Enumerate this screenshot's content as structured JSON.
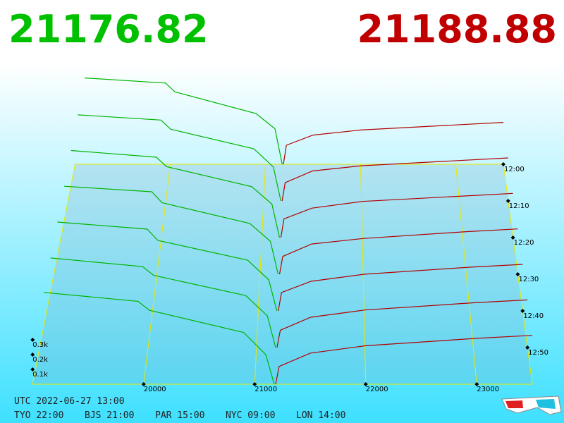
{
  "chart_data": {
    "type": "depth3d",
    "bid_price": 21176.82,
    "ask_price": 21188.88,
    "xlim": [
      19000,
      23500
    ],
    "xticks": [
      20000,
      21000,
      22000,
      23000
    ],
    "time_lim": [
      0,
      60
    ],
    "time_ticks": [
      {
        "value": 0,
        "label": "12:00"
      },
      {
        "value": 10,
        "label": "12:10"
      },
      {
        "value": 20,
        "label": "12:20"
      },
      {
        "value": 30,
        "label": "12:30"
      },
      {
        "value": 40,
        "label": "12:40"
      },
      {
        "value": 50,
        "label": "12:50"
      }
    ],
    "volume_ticks": [
      {
        "value": 0.1,
        "label": "0.1k"
      },
      {
        "value": 0.2,
        "label": "0.2k"
      },
      {
        "value": 0.3,
        "label": "0.3k"
      }
    ],
    "times": [
      0,
      10,
      20,
      30,
      40,
      50,
      60
    ],
    "bid_prices": [
      19100,
      19950,
      20050,
      20900,
      21100,
      21176
    ],
    "ask_prices": [
      21189,
      21220,
      21500,
      22000,
      23000,
      23500
    ],
    "bid_color": "#00b400",
    "ask_color": "#b40000",
    "bids": [
      [
        0.68,
        0.64,
        0.57,
        0.4,
        0.28,
        0
      ],
      [
        0.66,
        0.62,
        0.55,
        0.4,
        0.26,
        0
      ],
      [
        0.65,
        0.6,
        0.53,
        0.38,
        0.25,
        0
      ],
      [
        0.64,
        0.6,
        0.52,
        0.37,
        0.24,
        0
      ],
      [
        0.63,
        0.58,
        0.5,
        0.36,
        0.22,
        0
      ],
      [
        0.62,
        0.56,
        0.5,
        0.36,
        0.22,
        0
      ],
      [
        0.62,
        0.56,
        0.5,
        0.35,
        0.2,
        0
      ]
    ],
    "asks": [
      [
        0,
        0.15,
        0.23,
        0.27,
        0.31,
        0.33
      ],
      [
        0,
        0.14,
        0.23,
        0.27,
        0.31,
        0.33
      ],
      [
        0,
        0.14,
        0.22,
        0.27,
        0.31,
        0.33
      ],
      [
        0,
        0.13,
        0.22,
        0.26,
        0.31,
        0.33
      ],
      [
        0,
        0.13,
        0.21,
        0.26,
        0.31,
        0.33
      ],
      [
        0,
        0.12,
        0.21,
        0.26,
        0.31,
        0.33
      ],
      [
        0,
        0.12,
        0.21,
        0.26,
        0.31,
        0.33
      ]
    ]
  },
  "clock": {
    "utc": "UTC 2022-06-27 13:00",
    "zones": [
      "TYO 22:00",
      "BJS 21:00",
      "PAR 15:00",
      "NYC 09:00",
      "LON 14:00"
    ]
  }
}
